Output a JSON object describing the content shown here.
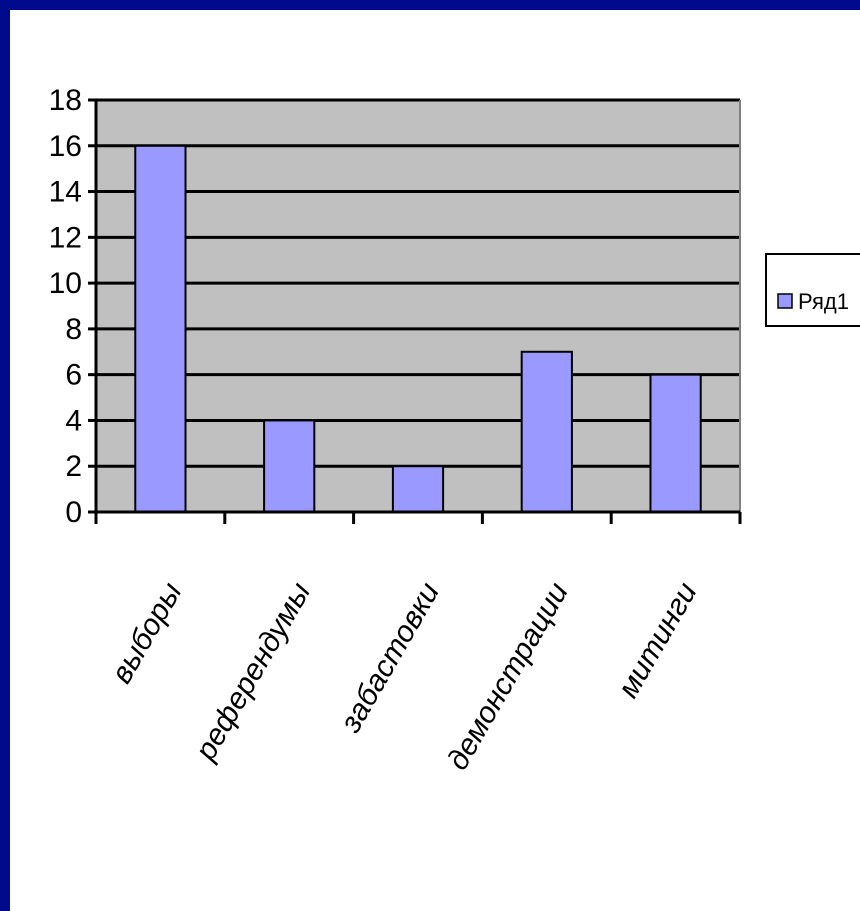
{
  "chart_data": {
    "type": "bar",
    "categories": [
      "выборы",
      "референдумы",
      "забастовки",
      "демонстрации",
      "митинги"
    ],
    "series": [
      {
        "name": "Ряд1",
        "values": [
          16,
          4,
          2,
          7,
          6
        ]
      }
    ],
    "title": "",
    "xlabel": "",
    "ylabel": "",
    "ylim": [
      0,
      18
    ],
    "yticks": [
      0,
      2,
      4,
      6,
      8,
      10,
      12,
      14,
      16,
      18
    ],
    "grid": true,
    "legend_position": "right"
  },
  "colors": {
    "slide_border": "#000a8c",
    "background": "#ffffff",
    "plot_area": "#c0c0c0",
    "bar_fill": "#9999ff",
    "bar_stroke": "#000000",
    "grid": "#000000"
  }
}
